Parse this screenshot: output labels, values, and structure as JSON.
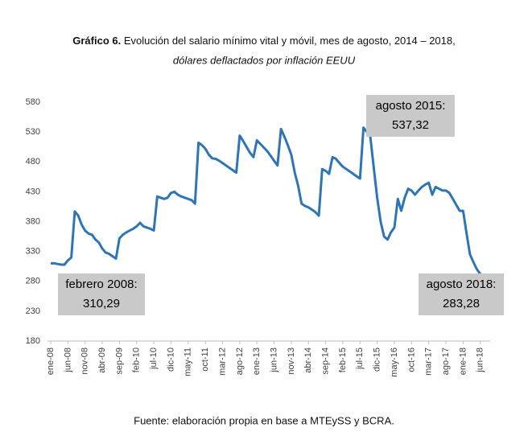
{
  "chart_data": {
    "type": "line",
    "title_prefix": "Gráfico 6.",
    "title": "Evolución del salario mínimo vital y móvil, mes de agosto, 2014 – 2018,",
    "subtitle": "dólares deflactados por inflación EEUU",
    "source": "Fuente: elaboración propia en base a MTEySS y BCRA.",
    "categories": [
      "ene-08",
      null,
      null,
      null,
      null,
      "jun-08",
      null,
      null,
      null,
      null,
      "nov-08",
      null,
      null,
      null,
      null,
      "abr-09",
      null,
      null,
      null,
      null,
      "sep-09",
      null,
      null,
      null,
      null,
      "feb-10",
      null,
      null,
      null,
      null,
      "jul-10",
      null,
      null,
      null,
      null,
      "dic-10",
      null,
      null,
      null,
      null,
      "may-11",
      null,
      null,
      null,
      null,
      "oct-11",
      null,
      null,
      null,
      null,
      "mar-12",
      null,
      null,
      null,
      null,
      "ago-12",
      null,
      null,
      null,
      null,
      "ene-13",
      null,
      null,
      null,
      null,
      "jun-13",
      null,
      null,
      null,
      null,
      "nov-13",
      null,
      null,
      null,
      null,
      "abr-14",
      null,
      null,
      null,
      null,
      "sep-14",
      null,
      null,
      null,
      null,
      "feb-15",
      null,
      null,
      null,
      null,
      "jul-15",
      null,
      null,
      null,
      null,
      "dic-15",
      null,
      null,
      null,
      null,
      "may-16",
      null,
      null,
      null,
      null,
      "oct-16",
      null,
      null,
      null,
      null,
      "mar-17",
      null,
      null,
      null,
      null,
      "ago-17",
      null,
      null,
      null,
      null,
      "ene-18",
      null,
      null,
      null,
      null,
      "jun-18",
      null,
      null
    ],
    "series": [
      {
        "name": "Salario mínimo vital y móvil",
        "color": "#2e75b6",
        "values": [
          310,
          310.29,
          309,
          308,
          308,
          315,
          320,
          397,
          390,
          375,
          365,
          360,
          358,
          350,
          345,
          335,
          328,
          326,
          322,
          318,
          352,
          358,
          362,
          365,
          368,
          372,
          378,
          372,
          370,
          368,
          365,
          422,
          420,
          418,
          420,
          428,
          430,
          425,
          422,
          420,
          418,
          416,
          410,
          512,
          508,
          502,
          492,
          486,
          485,
          482,
          478,
          474,
          470,
          466,
          462,
          524,
          515,
          505,
          495,
          488,
          516,
          510,
          504,
          498,
          490,
          482,
          474,
          535,
          522,
          508,
          492,
          462,
          440,
          410,
          406,
          404,
          400,
          396,
          390,
          468,
          465,
          460,
          488,
          485,
          478,
          472,
          468,
          464,
          460,
          456,
          452,
          537.32,
          530,
          522,
          470,
          420,
          380,
          355,
          350,
          362,
          370,
          418,
          398,
          420,
          435,
          432,
          425,
          432,
          438,
          442,
          445,
          425,
          438,
          435,
          432,
          432,
          428,
          418,
          408,
          398,
          398,
          360,
          325,
          312,
          300,
          292,
          288,
          283.28
        ]
      }
    ],
    "ylim": [
      180,
      580
    ],
    "yticks": [
      180,
      230,
      280,
      330,
      380,
      430,
      480,
      530,
      580
    ],
    "annotations": [
      {
        "lines": [
          "agosto 2015:",
          "537,32"
        ]
      },
      {
        "lines": [
          "febrero 2008:",
          "310,29"
        ]
      },
      {
        "lines": [
          "agosto 2018:",
          "283,28"
        ]
      }
    ]
  }
}
